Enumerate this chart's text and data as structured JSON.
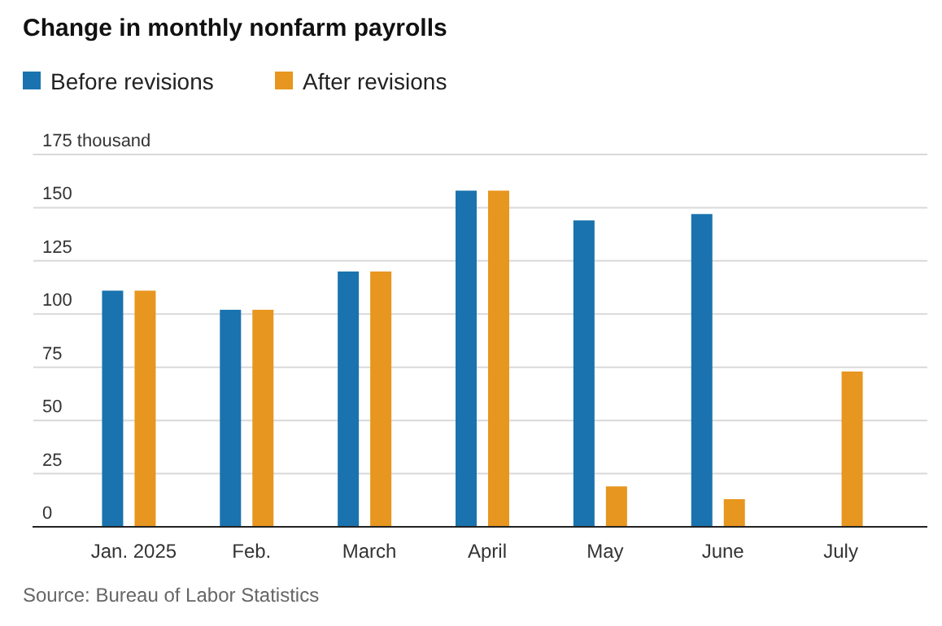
{
  "chart_data": {
    "type": "bar",
    "title": "Change in monthly nonfarm payrolls",
    "categories": [
      "Jan. 2025",
      "Feb.",
      "March",
      "April",
      "May",
      "June",
      "July"
    ],
    "series": [
      {
        "name": "Before revisions",
        "color": "#1a73ae",
        "values": [
          111,
          102,
          120,
          158,
          144,
          147,
          null
        ]
      },
      {
        "name": "After revisions",
        "color": "#e7961f",
        "values": [
          111,
          102,
          120,
          158,
          19,
          13,
          73
        ]
      }
    ],
    "ylim": [
      0,
      175
    ],
    "yticks": [
      0,
      25,
      50,
      75,
      100,
      125,
      150,
      {
        "value": 175,
        "label": "175 thousand"
      }
    ],
    "grid": "y",
    "legend": "top left",
    "annotations": [
      "Source: Bureau of Labor Statistics"
    ]
  }
}
